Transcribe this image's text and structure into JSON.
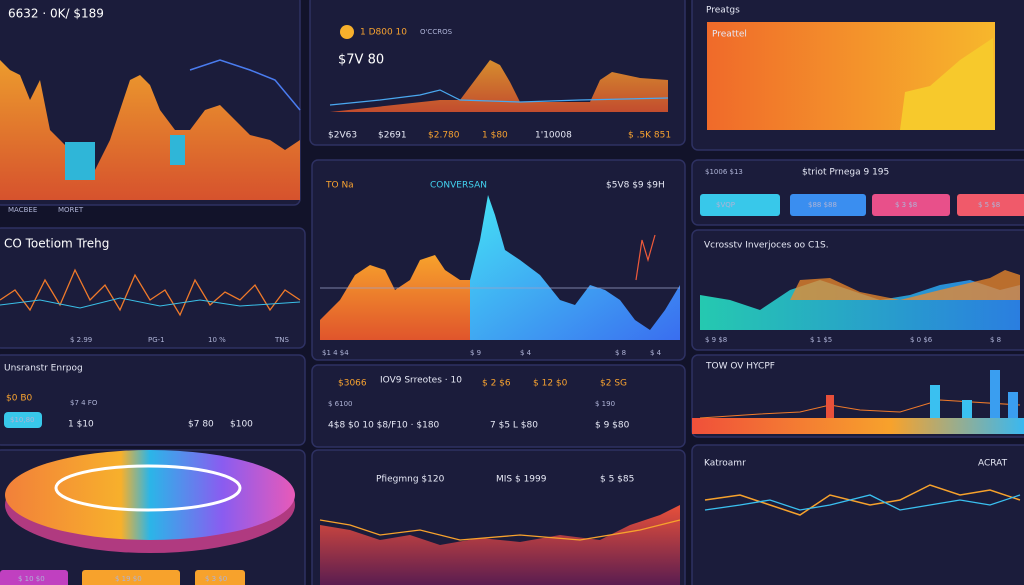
{
  "panels": [
    {
      "title": "6632 · 0K/ $189",
      "labels": [
        "MACBEE",
        "MORET"
      ]
    },
    {
      "title": "1 D800 10",
      "subtitle": "O'CCROS",
      "value": "$7V 80",
      "labels": [
        "$2V63",
        "$2691",
        "$2.780",
        "1 $80",
        "1'10008",
        "$ .5K 851"
      ]
    },
    {
      "title": "Preatgs",
      "subtitle": "Preattel"
    },
    {
      "title": "CO Toetiom Trehg",
      "labels": [
        "$ 2.99",
        "PG-1",
        "10 %",
        "TNS"
      ]
    },
    {
      "title": "TO Na",
      "subtitle": "CONVERSAN",
      "value": "$5V8 $9 $9H",
      "labels": [
        "$1 4 $4",
        "$ 9",
        "$ 4",
        "$ 8",
        "$ 4"
      ]
    },
    {
      "title": "$1006 $13",
      "subtitle": "$triot Prnega 9 195",
      "buttons": [
        "$VQP",
        "$88 $88",
        "$ 3 $8",
        "$ 5 $8"
      ]
    },
    {
      "title": "Vcrosstv Inverjoces oo C1S.",
      "labels": [
        "$ 9 $8",
        "$ 1 $5",
        "$ 0 $6",
        "$ 8"
      ]
    },
    {
      "title": "Unsranstr Enrpog",
      "value": "$0 B0",
      "button": "$10,80",
      "labels": [
        "$7 4 FO",
        "1 $10",
        "$7 80",
        "$100"
      ]
    },
    {
      "title": "IOV9 Srreotes · 10",
      "labels": [
        "$3066",
        "$ 2 $6",
        "$ 12 $0",
        "$2 SG",
        "$ 6100",
        "$ 190"
      ],
      "values": [
        "4$8 $0 10 $8/F10 · $180",
        "7 $5 L $80",
        "$ 9 $80"
      ]
    },
    {
      "title": "TOW OV HYCPF"
    },
    {
      "buttons": [
        "$ 10 $0",
        "$ 19 $0",
        "$ 3 $0"
      ]
    },
    {
      "title": "Pfiegmng $120",
      "subtitle": "MIS $ 1999",
      "value": "$ 5 $85"
    },
    {
      "title": "Katroamr",
      "subtitle": "ACRAT"
    }
  ]
}
